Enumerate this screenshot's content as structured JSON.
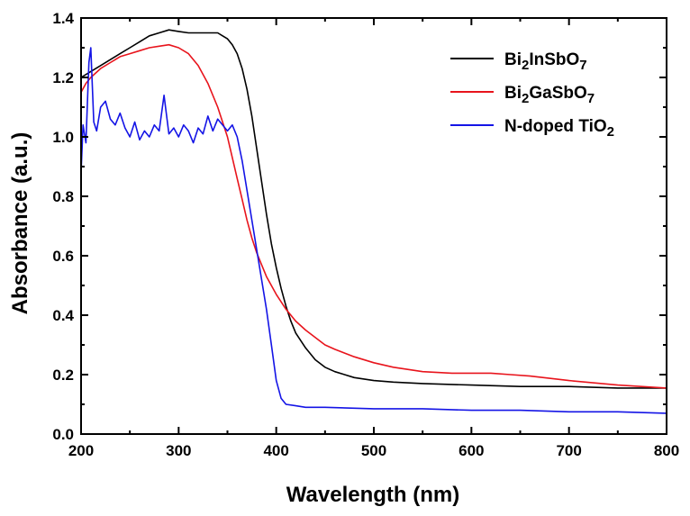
{
  "chart_data": {
    "type": "line",
    "title": "",
    "xlabel": "Wavelength (nm)",
    "ylabel": "Absorbance (a.u.)",
    "xlim": [
      200,
      800
    ],
    "ylim": [
      0.0,
      1.4
    ],
    "x_ticks": [
      200,
      300,
      400,
      500,
      600,
      700,
      800
    ],
    "y_ticks": [
      "0.0",
      "0.2",
      "0.4",
      "0.6",
      "0.8",
      "1.0",
      "1.2",
      "1.4"
    ],
    "grid": false,
    "legend_position": "top-right",
    "series": [
      {
        "name": "Bi2InSbO7",
        "legend": {
          "base": "Bi",
          "sub1": "2",
          "mid": "InSbO",
          "sub2": "7"
        },
        "color": "#000000",
        "x": [
          200,
          210,
          220,
          230,
          240,
          250,
          260,
          270,
          280,
          290,
          300,
          310,
          320,
          330,
          340,
          345,
          350,
          355,
          360,
          365,
          370,
          375,
          380,
          385,
          390,
          395,
          400,
          405,
          410,
          415,
          420,
          430,
          440,
          450,
          460,
          470,
          480,
          500,
          520,
          550,
          600,
          650,
          700,
          750,
          780,
          800
        ],
        "y": [
          1.2,
          1.22,
          1.24,
          1.26,
          1.28,
          1.3,
          1.32,
          1.34,
          1.35,
          1.36,
          1.355,
          1.35,
          1.35,
          1.35,
          1.35,
          1.34,
          1.33,
          1.31,
          1.28,
          1.23,
          1.16,
          1.07,
          0.96,
          0.85,
          0.74,
          0.64,
          0.56,
          0.49,
          0.43,
          0.38,
          0.34,
          0.29,
          0.25,
          0.225,
          0.21,
          0.2,
          0.19,
          0.18,
          0.175,
          0.17,
          0.165,
          0.16,
          0.16,
          0.155,
          0.155,
          0.155
        ]
      },
      {
        "name": "Bi2GaSbO7",
        "legend": {
          "base": "Bi",
          "sub1": "2",
          "mid": "GaSbO",
          "sub2": "7"
        },
        "color": "#e8141c",
        "x": [
          200,
          205,
          210,
          220,
          230,
          240,
          250,
          260,
          270,
          280,
          290,
          300,
          310,
          320,
          330,
          340,
          350,
          355,
          360,
          365,
          370,
          375,
          380,
          385,
          390,
          400,
          410,
          420,
          430,
          440,
          450,
          460,
          480,
          500,
          520,
          550,
          580,
          600,
          620,
          640,
          660,
          700,
          750,
          800
        ],
        "y": [
          1.15,
          1.18,
          1.2,
          1.23,
          1.25,
          1.27,
          1.28,
          1.29,
          1.3,
          1.305,
          1.31,
          1.3,
          1.28,
          1.24,
          1.18,
          1.1,
          1.0,
          0.93,
          0.86,
          0.79,
          0.72,
          0.66,
          0.61,
          0.57,
          0.53,
          0.47,
          0.42,
          0.38,
          0.35,
          0.325,
          0.3,
          0.285,
          0.26,
          0.24,
          0.225,
          0.21,
          0.205,
          0.205,
          0.205,
          0.2,
          0.195,
          0.18,
          0.165,
          0.155
        ]
      },
      {
        "name": "N-doped TiO2",
        "legend": {
          "base": "N-doped TiO",
          "sub1": "2",
          "mid": "",
          "sub2": ""
        },
        "color": "#1414e6",
        "x": [
          200,
          202,
          205,
          208,
          210,
          213,
          216,
          220,
          225,
          230,
          235,
          240,
          245,
          250,
          255,
          260,
          265,
          270,
          275,
          280,
          285,
          290,
          295,
          300,
          305,
          310,
          315,
          320,
          325,
          330,
          335,
          340,
          345,
          350,
          355,
          360,
          365,
          370,
          375,
          380,
          385,
          390,
          395,
          400,
          405,
          410,
          420,
          430,
          450,
          500,
          550,
          600,
          650,
          700,
          750,
          800
        ],
        "y": [
          0.88,
          1.04,
          0.98,
          1.25,
          1.3,
          1.05,
          1.02,
          1.1,
          1.12,
          1.06,
          1.04,
          1.08,
          1.03,
          1.0,
          1.05,
          0.99,
          1.02,
          1.0,
          1.04,
          1.02,
          1.14,
          1.01,
          1.03,
          1.0,
          1.04,
          1.02,
          0.98,
          1.03,
          1.01,
          1.07,
          1.02,
          1.06,
          1.04,
          1.02,
          1.04,
          1.0,
          0.92,
          0.82,
          0.72,
          0.62,
          0.52,
          0.42,
          0.3,
          0.18,
          0.12,
          0.1,
          0.095,
          0.09,
          0.09,
          0.085,
          0.085,
          0.08,
          0.08,
          0.075,
          0.075,
          0.07
        ]
      }
    ]
  }
}
